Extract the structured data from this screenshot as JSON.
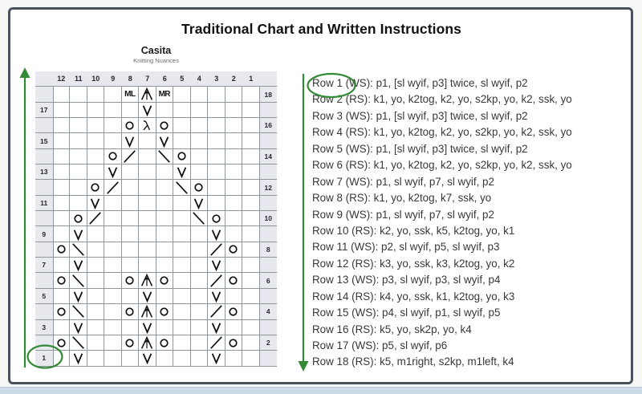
{
  "title": "Traditional Chart and Written Instructions",
  "colors": {
    "green": "#338a36",
    "border": "#47545f",
    "grid": "#8f969c",
    "shade": "#e8e8ef"
  },
  "chart": {
    "name": "Casita",
    "brand": "Knitting Nuances",
    "column_headers": [
      "12",
      "11",
      "10",
      "9",
      "8",
      "7",
      "6",
      "5",
      "4",
      "3",
      "2",
      "1"
    ],
    "rows": [
      {
        "row": 18,
        "side": "right",
        "cells": {
          "8": "ML",
          "7": "s2kp",
          "6": "MR"
        }
      },
      {
        "row": 17,
        "side": "left",
        "cells": {
          "7": "V"
        }
      },
      {
        "row": 16,
        "side": "right",
        "cells": {
          "8": "O",
          "7": "sk2p",
          "6": "O"
        }
      },
      {
        "row": 15,
        "side": "left",
        "cells": {
          "8": "V",
          "6": "V"
        }
      },
      {
        "row": 14,
        "side": "right",
        "cells": {
          "9": "O",
          "8": "k2tog",
          "6": "ssk",
          "5": "O"
        }
      },
      {
        "row": 13,
        "side": "left",
        "cells": {
          "9": "V",
          "5": "V"
        }
      },
      {
        "row": 12,
        "side": "right",
        "cells": {
          "10": "O",
          "9": "k2tog",
          "5": "ssk",
          "4": "O"
        }
      },
      {
        "row": 11,
        "side": "left",
        "cells": {
          "10": "V",
          "4": "V"
        }
      },
      {
        "row": 10,
        "side": "right",
        "cells": {
          "11": "O",
          "10": "k2tog",
          "4": "ssk",
          "3": "O"
        }
      },
      {
        "row": 9,
        "side": "left",
        "cells": {
          "11": "V",
          "3": "V"
        }
      },
      {
        "row": 8,
        "side": "right",
        "cells": {
          "12": "O",
          "11": "ssk",
          "3": "k2tog",
          "2": "O"
        }
      },
      {
        "row": 7,
        "side": "left",
        "cells": {
          "11": "V",
          "3": "V"
        }
      },
      {
        "row": 6,
        "side": "right",
        "cells": {
          "12": "O",
          "11": "ssk",
          "8": "O",
          "7": "s2kp",
          "6": "O",
          "3": "k2tog",
          "2": "O"
        }
      },
      {
        "row": 5,
        "side": "left",
        "cells": {
          "11": "V",
          "7": "V",
          "3": "V"
        }
      },
      {
        "row": 4,
        "side": "right",
        "cells": {
          "12": "O",
          "11": "ssk",
          "8": "O",
          "7": "s2kp",
          "6": "O",
          "3": "k2tog",
          "2": "O"
        }
      },
      {
        "row": 3,
        "side": "left",
        "cells": {
          "11": "V",
          "7": "V",
          "3": "V"
        }
      },
      {
        "row": 2,
        "side": "right",
        "cells": {
          "12": "O",
          "11": "ssk",
          "8": "O",
          "7": "s2kp",
          "6": "O",
          "3": "k2tog",
          "2": "O"
        }
      },
      {
        "row": 1,
        "side": "left",
        "circled": true,
        "cells": {
          "11": "V",
          "7": "V",
          "3": "V"
        }
      }
    ]
  },
  "instructions": [
    "Row 1 (WS): p1, [sl wyif, p3] twice, sl wyif, p2",
    "Row 2 (RS): k1, yo, k2tog, k2, yo, s2kp, yo, k2, ssk, yo",
    "Row 3 (WS): p1, [sl wyif, p3] twice, sl wyif, p2",
    "Row 4 (RS): k1, yo, k2tog, k2, yo, s2kp, yo, k2, ssk, yo",
    "Row 5 (WS): p1, [sl wyif, p3] twice, sl wyif, p2",
    "Row 6 (RS): k1, yo, k2tog, k2, yo, s2kp, yo, k2, ssk, yo",
    "Row 7 (WS): p1, sl wyif, p7, sl wyif, p2",
    "Row 8 (RS): k1, yo, k2tog, k7, ssk, yo",
    "Row 9 (WS): p1, sl wyif, p7, sl wyif, p2",
    "Row 10 (RS): k2, yo, ssk, k5, k2tog, yo, k1",
    "Row 11 (WS): p2, sl wyif, p5, sl wyif, p3",
    "Row 12 (RS): k3, yo, ssk, k3, k2tog, yo, k2",
    "Row 13 (WS): p3, sl wyif, p3, sl wyif, p4",
    "Row 14 (RS): k4, yo, ssk, k1, k2tog, yo, k3",
    "Row 15 (WS): p4, sl wyif, p1, sl wyif, p5",
    "Row 16 (RS): k5, yo, sk2p, yo, k4",
    "Row 17 (WS): p5, sl wyif, p6",
    "Row 18 (RS): k5, m1right, s2kp, m1left, k4"
  ]
}
